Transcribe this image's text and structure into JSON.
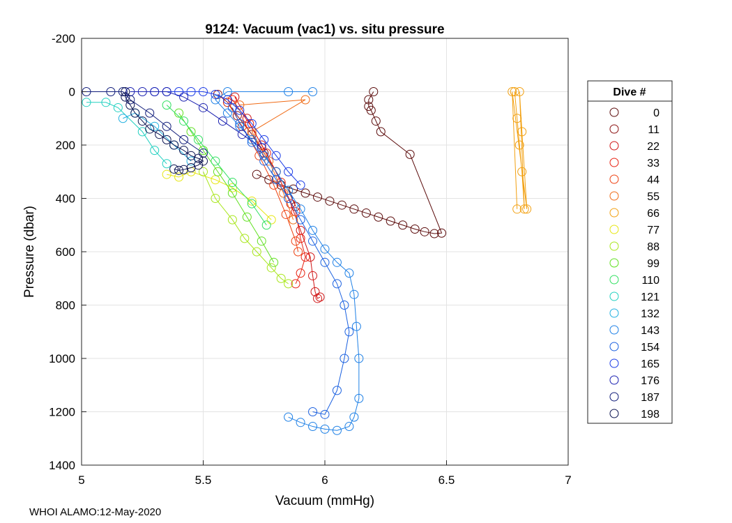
{
  "chart_data": {
    "type": "scatter",
    "title": "9124: Vacuum (vac1) vs. situ pressure",
    "xlabel": "Vacuum (mmHg)",
    "ylabel": "Pressure (dbar)",
    "xlim": [
      5,
      7
    ],
    "ylim": [
      -200,
      1400
    ],
    "y_reversed": true,
    "grid": true,
    "x_ticks": [
      "5",
      "5.5",
      "6",
      "6.5",
      "7"
    ],
    "y_ticks": [
      "-200",
      "0",
      "200",
      "400",
      "600",
      "800",
      "1000",
      "1200",
      "1400"
    ],
    "legend_title": "Dive #",
    "legend_position": "right",
    "series": [
      {
        "name": "0",
        "color": "#5a0a0a",
        "points": [
          [
            6.2,
            0
          ],
          [
            6.18,
            30
          ],
          [
            6.18,
            55
          ],
          [
            6.19,
            70
          ],
          [
            6.21,
            110
          ],
          [
            6.23,
            150
          ],
          [
            6.35,
            235
          ],
          [
            6.48,
            530
          ],
          [
            6.45,
            532
          ],
          [
            6.41,
            525
          ],
          [
            6.37,
            515
          ],
          [
            6.32,
            500
          ],
          [
            6.27,
            485
          ],
          [
            6.22,
            470
          ],
          [
            6.17,
            455
          ],
          [
            6.12,
            440
          ],
          [
            6.07,
            425
          ],
          [
            6.02,
            410
          ],
          [
            5.97,
            395
          ],
          [
            5.92,
            380
          ],
          [
            5.87,
            365
          ],
          [
            5.82,
            350
          ],
          [
            5.77,
            330
          ],
          [
            5.72,
            310
          ]
        ]
      },
      {
        "name": "11",
        "color": "#8b1010",
        "points": [
          [
            5.56,
            10
          ],
          [
            5.6,
            40
          ],
          [
            5.64,
            90
          ],
          [
            5.7,
            160
          ],
          [
            5.75,
            230
          ],
          [
            5.8,
            300
          ],
          [
            5.85,
            370
          ],
          [
            5.88,
            430
          ]
        ]
      },
      {
        "name": "22",
        "color": "#d01414",
        "points": [
          [
            5.63,
            20
          ],
          [
            5.68,
            100
          ],
          [
            5.74,
            200
          ],
          [
            5.8,
            300
          ],
          [
            5.86,
            420
          ],
          [
            5.9,
            520
          ],
          [
            5.94,
            620
          ],
          [
            5.95,
            690
          ],
          [
            5.96,
            750
          ],
          [
            5.97,
            775
          ],
          [
            5.98,
            770
          ]
        ]
      },
      {
        "name": "33",
        "color": "#e82010",
        "points": [
          [
            5.62,
            30
          ],
          [
            5.69,
            120
          ],
          [
            5.76,
            230
          ],
          [
            5.82,
            340
          ],
          [
            5.88,
            450
          ],
          [
            5.9,
            550
          ],
          [
            5.92,
            620
          ],
          [
            5.9,
            680
          ],
          [
            5.88,
            720
          ]
        ]
      },
      {
        "name": "44",
        "color": "#ee4010",
        "points": [
          [
            5.6,
            40
          ],
          [
            5.66,
            130
          ],
          [
            5.73,
            240
          ],
          [
            5.79,
            350
          ],
          [
            5.84,
            460
          ],
          [
            5.88,
            560
          ],
          [
            5.89,
            600
          ]
        ]
      },
      {
        "name": "55",
        "color": "#f06a14",
        "points": [
          [
            5.65,
            50
          ],
          [
            5.92,
            30
          ],
          [
            5.7,
            150
          ],
          [
            5.77,
            260
          ],
          [
            5.83,
            380
          ],
          [
            5.87,
            480
          ]
        ]
      },
      {
        "name": "66",
        "color": "#f2a010",
        "points": [
          [
            6.78,
            0
          ],
          [
            6.79,
            100
          ],
          [
            6.8,
            200
          ],
          [
            6.81,
            300
          ],
          [
            6.82,
            440
          ],
          [
            6.8,
            0
          ],
          [
            6.81,
            150
          ],
          [
            6.83,
            440
          ],
          [
            6.77,
            0
          ],
          [
            6.79,
            440
          ]
        ]
      },
      {
        "name": "77",
        "color": "#e6e610",
        "points": [
          [
            5.35,
            310
          ],
          [
            5.4,
            320
          ],
          [
            5.45,
            300
          ],
          [
            5.55,
            330
          ],
          [
            5.62,
            360
          ],
          [
            5.7,
            410
          ],
          [
            5.78,
            480
          ]
        ]
      },
      {
        "name": "88",
        "color": "#a8e61a",
        "points": [
          [
            5.5,
            300
          ],
          [
            5.55,
            400
          ],
          [
            5.62,
            480
          ],
          [
            5.67,
            550
          ],
          [
            5.72,
            600
          ],
          [
            5.78,
            660
          ],
          [
            5.82,
            700
          ],
          [
            5.85,
            720
          ]
        ]
      },
      {
        "name": "99",
        "color": "#60e020",
        "points": [
          [
            5.4,
            80
          ],
          [
            5.45,
            150
          ],
          [
            5.5,
            220
          ],
          [
            5.56,
            300
          ],
          [
            5.62,
            380
          ],
          [
            5.68,
            470
          ],
          [
            5.74,
            560
          ],
          [
            5.79,
            640
          ]
        ]
      },
      {
        "name": "110",
        "color": "#30e060",
        "points": [
          [
            5.35,
            50
          ],
          [
            5.42,
            110
          ],
          [
            5.48,
            180
          ],
          [
            5.55,
            260
          ],
          [
            5.62,
            340
          ],
          [
            5.7,
            420
          ],
          [
            5.76,
            500
          ]
        ]
      },
      {
        "name": "121",
        "color": "#20d0c0",
        "points": [
          [
            5.02,
            40
          ],
          [
            5.1,
            40
          ],
          [
            5.15,
            60
          ],
          [
            5.25,
            150
          ],
          [
            5.3,
            220
          ],
          [
            5.35,
            270
          ]
        ]
      },
      {
        "name": "132",
        "color": "#20b0e0",
        "points": [
          [
            5.17,
            100
          ],
          [
            5.22,
            80
          ],
          [
            5.3,
            130
          ],
          [
            5.38,
            200
          ],
          [
            5.45,
            260
          ]
        ]
      },
      {
        "name": "143",
        "color": "#1e80e6",
        "points": [
          [
            5.85,
            1220
          ],
          [
            5.9,
            1240
          ],
          [
            5.95,
            1255
          ],
          [
            6.0,
            1265
          ],
          [
            6.05,
            1270
          ],
          [
            6.1,
            1255
          ],
          [
            6.12,
            1220
          ],
          [
            6.14,
            1150
          ],
          [
            6.14,
            1000
          ],
          [
            6.13,
            880
          ],
          [
            6.12,
            760
          ],
          [
            6.1,
            680
          ],
          [
            6.05,
            640
          ],
          [
            6.0,
            590
          ],
          [
            5.95,
            520
          ],
          [
            5.9,
            440
          ],
          [
            5.85,
            370
          ],
          [
            5.8,
            300
          ],
          [
            5.75,
            240
          ],
          [
            5.7,
            180
          ],
          [
            5.65,
            130
          ],
          [
            5.6,
            80
          ],
          [
            5.55,
            30
          ],
          [
            5.6,
            0
          ],
          [
            5.85,
            0
          ],
          [
            5.95,
            0
          ]
        ]
      },
      {
        "name": "154",
        "color": "#1a60e0",
        "points": [
          [
            5.95,
            1200
          ],
          [
            6.0,
            1210
          ],
          [
            6.05,
            1120
          ],
          [
            6.08,
            1000
          ],
          [
            6.1,
            900
          ],
          [
            6.08,
            800
          ],
          [
            6.05,
            720
          ],
          [
            6.0,
            640
          ],
          [
            5.95,
            560
          ],
          [
            5.9,
            480
          ],
          [
            5.85,
            400
          ],
          [
            5.8,
            330
          ],
          [
            5.75,
            260
          ],
          [
            5.7,
            190
          ],
          [
            5.65,
            120
          ],
          [
            5.62,
            60
          ]
        ]
      },
      {
        "name": "165",
        "color": "#1a3ae6",
        "points": [
          [
            5.3,
            0
          ],
          [
            5.35,
            0
          ],
          [
            5.4,
            0
          ],
          [
            5.45,
            0
          ],
          [
            5.5,
            0
          ],
          [
            5.55,
            10
          ],
          [
            5.6,
            30
          ],
          [
            5.65,
            70
          ],
          [
            5.7,
            120
          ],
          [
            5.75,
            180
          ],
          [
            5.8,
            240
          ],
          [
            5.85,
            300
          ],
          [
            5.9,
            350
          ]
        ]
      },
      {
        "name": "176",
        "color": "#1a20b0",
        "points": [
          [
            5.2,
            0
          ],
          [
            5.25,
            0
          ],
          [
            5.3,
            0
          ],
          [
            5.35,
            0
          ],
          [
            5.42,
            20
          ],
          [
            5.5,
            60
          ],
          [
            5.58,
            110
          ],
          [
            5.66,
            160
          ],
          [
            5.74,
            210
          ]
        ]
      },
      {
        "name": "187",
        "color": "#101c7a",
        "points": [
          [
            5.02,
            0
          ],
          [
            5.12,
            0
          ],
          [
            5.17,
            0
          ],
          [
            5.2,
            30
          ],
          [
            5.28,
            80
          ],
          [
            5.35,
            130
          ],
          [
            5.42,
            180
          ],
          [
            5.5,
            230
          ]
        ]
      },
      {
        "name": "198",
        "color": "#0a1250",
        "points": [
          [
            5.18,
            0
          ],
          [
            5.18,
            20
          ],
          [
            5.2,
            50
          ],
          [
            5.22,
            80
          ],
          [
            5.25,
            110
          ],
          [
            5.28,
            140
          ],
          [
            5.32,
            160
          ],
          [
            5.35,
            180
          ],
          [
            5.38,
            200
          ],
          [
            5.42,
            220
          ],
          [
            5.45,
            240
          ],
          [
            5.48,
            250
          ],
          [
            5.5,
            260
          ],
          [
            5.48,
            275
          ],
          [
            5.45,
            285
          ],
          [
            5.42,
            292
          ],
          [
            5.4,
            295
          ],
          [
            5.38,
            290
          ]
        ]
      }
    ]
  },
  "footer": "WHOI ALAMO:12-May-2020"
}
